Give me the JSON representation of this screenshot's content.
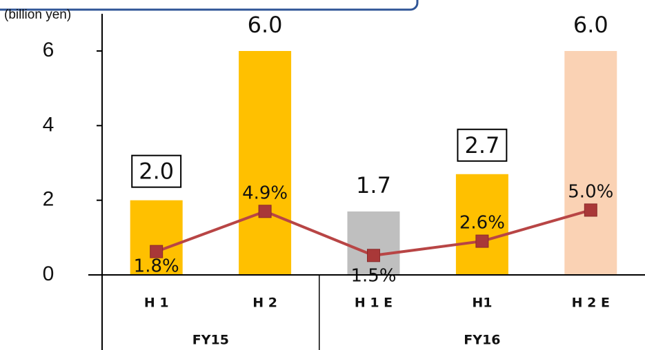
{
  "chart_data": {
    "type": "bar",
    "y_axis_label": "(billion yen)",
    "categories": [
      "H 1",
      "H 2",
      "H 1 E",
      "H1",
      "H 2 E"
    ],
    "groups": [
      "FY15",
      "FY16"
    ],
    "group_sizes": [
      2,
      3
    ],
    "series": [
      {
        "type": "bar",
        "colors": [
          "#FFC000",
          "#FFC000",
          "#BFBFBF",
          "#FFC000",
          "#FAD2B4"
        ],
        "values": [
          2.0,
          6.0,
          1.7,
          2.7,
          6.0
        ],
        "value_labels": [
          "2.0",
          "6.0",
          "1.7",
          "2.7",
          "6.0"
        ],
        "boxed": [
          true,
          false,
          false,
          true,
          false
        ]
      },
      {
        "type": "line",
        "axis": "y2",
        "color": "#B84545",
        "marker_color": "#A93838",
        "values": [
          1.8,
          4.9,
          1.5,
          2.6,
          5.0
        ],
        "value_labels": [
          "1.8%",
          "4.9%",
          "1.5%",
          "2.6%",
          "5.0%"
        ]
      }
    ],
    "ylim": [
      0,
      6.6
    ],
    "yticks": [
      0,
      2,
      4,
      6
    ],
    "y2lim": [
      0,
      19
    ]
  }
}
